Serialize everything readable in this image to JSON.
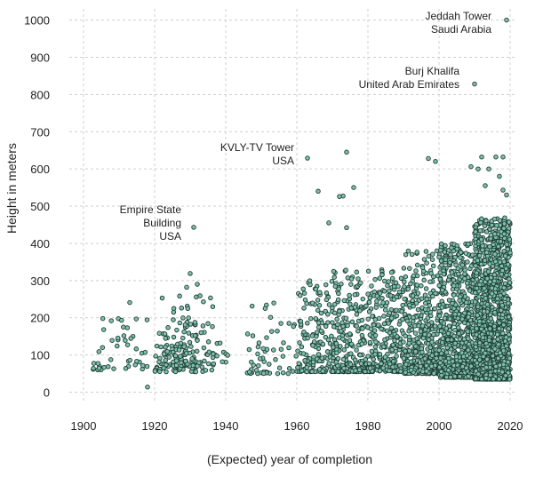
{
  "chart_data": {
    "type": "scatter",
    "xlabel": "(Expected) year of completion",
    "ylabel": "Height in meters",
    "xlim": [
      1896,
      2022
    ],
    "ylim": [
      -25,
      1030
    ],
    "x_ticks": [
      1900,
      1920,
      1940,
      1960,
      1980,
      2000,
      2020
    ],
    "y_ticks": [
      0,
      100,
      200,
      300,
      400,
      500,
      600,
      700,
      800,
      900,
      1000
    ],
    "grid": true,
    "point_fill": "#7fbfae",
    "point_stroke": "#1f3d32",
    "annotations": [
      {
        "lines": [
          "Jeddah Tower",
          "Saudi Arabia"
        ],
        "x": 2019,
        "y": 1000
      },
      {
        "lines": [
          "Burj Khalifa",
          "United Arab Emirates"
        ],
        "x": 2010,
        "y": 828
      },
      {
        "lines": [
          "KVLY-TV Tower",
          "USA"
        ],
        "x": 1963,
        "y": 629
      },
      {
        "lines": [
          "Empire State",
          "Building",
          "USA"
        ],
        "x": 1931,
        "y": 443
      }
    ],
    "notable_points": [
      {
        "x": 2019,
        "y": 1000
      },
      {
        "x": 2010,
        "y": 828
      },
      {
        "x": 1963,
        "y": 629
      },
      {
        "x": 1931,
        "y": 443
      },
      {
        "x": 1974,
        "y": 645
      },
      {
        "x": 1997,
        "y": 628
      },
      {
        "x": 1999,
        "y": 620
      },
      {
        "x": 2012,
        "y": 632
      },
      {
        "x": 2016,
        "y": 632
      },
      {
        "x": 2018,
        "y": 632
      },
      {
        "x": 2009,
        "y": 606
      },
      {
        "x": 2011,
        "y": 600
      },
      {
        "x": 2014,
        "y": 600
      },
      {
        "x": 2017,
        "y": 580
      },
      {
        "x": 2013,
        "y": 555
      },
      {
        "x": 2018,
        "y": 543
      },
      {
        "x": 2019,
        "y": 530
      },
      {
        "x": 1966,
        "y": 540
      },
      {
        "x": 1976,
        "y": 550
      },
      {
        "x": 1973,
        "y": 527
      },
      {
        "x": 1972,
        "y": 526
      },
      {
        "x": 1969,
        "y": 455
      },
      {
        "x": 1974,
        "y": 442
      },
      {
        "x": 1930,
        "y": 319
      },
      {
        "x": 1932,
        "y": 290
      },
      {
        "x": 1929,
        "y": 282
      },
      {
        "x": 1913,
        "y": 241
      },
      {
        "x": 1918,
        "y": 14
      }
    ],
    "clusters": [
      {
        "x": [
          1902,
          1918
        ],
        "y": [
          60,
          200
        ],
        "count": 45
      },
      {
        "x": [
          1920,
          1937
        ],
        "y": [
          55,
          260
        ],
        "count": 110
      },
      {
        "x": [
          1925,
          1932
        ],
        "y": [
          70,
          200
        ],
        "count": 60
      },
      {
        "x": [
          1937,
          1941
        ],
        "y": [
          80,
          140
        ],
        "count": 8
      },
      {
        "x": [
          1946,
          1960
        ],
        "y": [
          50,
          260
        ],
        "count": 55
      },
      {
        "x": [
          1960,
          1970
        ],
        "y": [
          55,
          300
        ],
        "count": 150
      },
      {
        "x": [
          1970,
          1980
        ],
        "y": [
          55,
          330
        ],
        "count": 230
      },
      {
        "x": [
          1980,
          1990
        ],
        "y": [
          55,
          330
        ],
        "count": 260
      },
      {
        "x": [
          1990,
          2000
        ],
        "y": [
          50,
          380
        ],
        "count": 380
      },
      {
        "x": [
          2000,
          2010
        ],
        "y": [
          40,
          400
        ],
        "count": 700
      },
      {
        "x": [
          2010,
          2020
        ],
        "y": [
          35,
          470
        ],
        "count": 1500
      }
    ]
  }
}
